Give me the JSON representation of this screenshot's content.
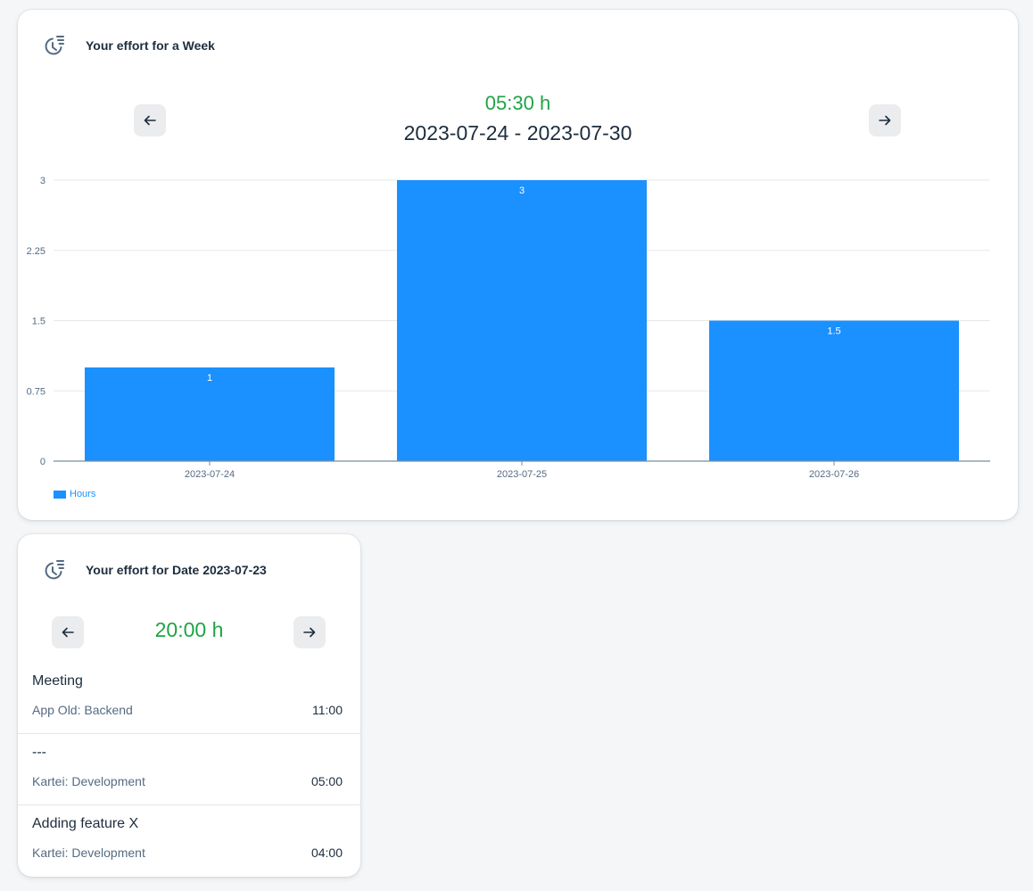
{
  "week_card": {
    "title": "Your effort for a Week",
    "icon": "clock-list-icon",
    "total": "05:30 h",
    "range": "2023-07-24 - 2023-07-30",
    "prev_icon": "arrow-left-icon",
    "next_icon": "arrow-right-icon"
  },
  "chart_data": {
    "type": "bar",
    "categories": [
      "2023-07-24",
      "2023-07-25",
      "2023-07-26"
    ],
    "series": [
      {
        "name": "Hours",
        "values": [
          1,
          3,
          1.5
        ],
        "color": "#1b90ff"
      }
    ],
    "y_ticks": [
      "0",
      "0.75",
      "1.5",
      "2.25",
      "3"
    ],
    "ylim": [
      0,
      3
    ],
    "grid": true,
    "legend": "bottom-left",
    "data_labels": [
      "1",
      "3",
      "1.5"
    ]
  },
  "day_card": {
    "title": "Your effort for Date 2023-07-23",
    "icon": "clock-list-icon",
    "total": "20:00 h",
    "entries": [
      {
        "title": "Meeting",
        "project": "App Old: Backend",
        "time": "11:00"
      },
      {
        "title": "---",
        "project": "Kartei: Development",
        "time": "05:00"
      },
      {
        "title": "Adding feature X",
        "project": "Kartei: Development",
        "time": "04:00"
      }
    ]
  },
  "colors": {
    "accent": "#1b90ff",
    "total_green": "#1fa446",
    "text": "#1d2d3e",
    "muted": "#556b82"
  }
}
